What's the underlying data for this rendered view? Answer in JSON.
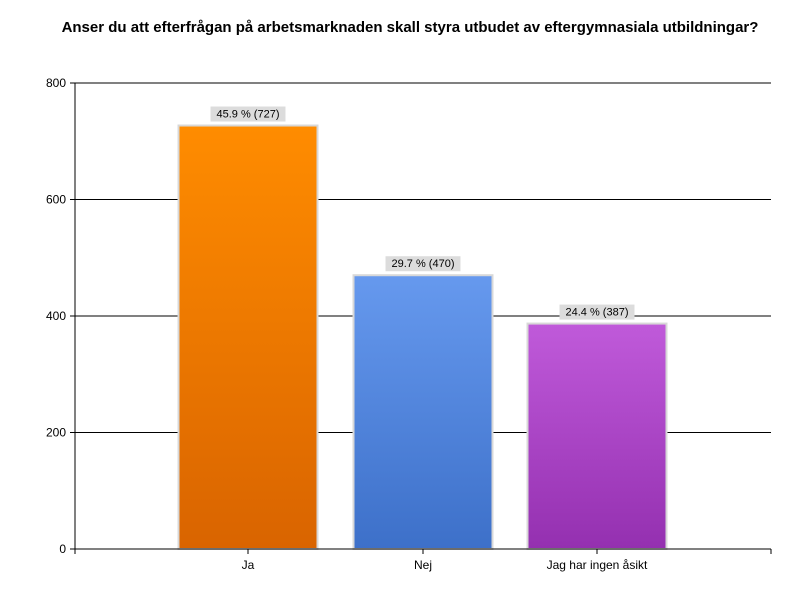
{
  "chart_data": {
    "type": "bar",
    "title": "Anser du att efterfrågan på arbetsmarknaden skall styra utbudet av eftergymnasiala utbildningar?",
    "categories": [
      "Ja",
      "Nej",
      "Jag har ingen åsikt"
    ],
    "values": [
      727,
      470,
      387
    ],
    "data_labels": [
      "45.9 % (727)",
      "29.7 % (470)",
      "24.4 % (387)"
    ],
    "bar_colors": [
      {
        "top": "#ff8c00",
        "bottom": "#d96400"
      },
      {
        "top": "#6699ee",
        "bottom": "#3d70c9"
      },
      {
        "top": "#c05ada",
        "bottom": "#9430b0"
      }
    ],
    "ylim": [
      0,
      800
    ],
    "yticks": [
      0,
      200,
      400,
      600,
      800
    ],
    "xlabel": "",
    "ylabel": "",
    "grid": true,
    "legend": "none"
  }
}
